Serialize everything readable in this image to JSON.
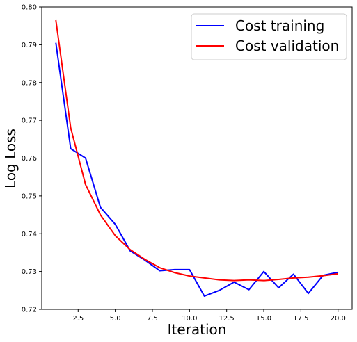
{
  "chart_data": {
    "type": "line",
    "title": "",
    "xlabel": "Iteration",
    "ylabel": "Log Loss",
    "xlim": [
      0.05,
      20.95
    ],
    "ylim": [
      0.72,
      0.8
    ],
    "x_ticks": [
      2.5,
      5.0,
      7.5,
      10.0,
      12.5,
      15.0,
      17.5,
      20.0
    ],
    "x_tick_labels": [
      "2.5",
      "5.0",
      "7.5",
      "10.0",
      "12.5",
      "15.0",
      "17.5",
      "20.0"
    ],
    "y_ticks": [
      0.72,
      0.73,
      0.74,
      0.75,
      0.76,
      0.77,
      0.78,
      0.79,
      0.8
    ],
    "y_tick_labels": [
      "0.72",
      "0.73",
      "0.74",
      "0.75",
      "0.76",
      "0.77",
      "0.78",
      "0.79",
      "0.80"
    ],
    "grid": false,
    "legend_position": "top-right",
    "x": [
      1,
      2,
      3,
      4,
      5,
      6,
      7,
      8,
      9,
      10,
      11,
      12,
      13,
      14,
      15,
      16,
      17,
      18,
      19,
      20
    ],
    "series": [
      {
        "name": "Cost training",
        "color": "#0000ff",
        "values": [
          0.7905,
          0.7625,
          0.76,
          0.747,
          0.7425,
          0.7355,
          0.733,
          0.7302,
          0.7305,
          0.7305,
          0.7235,
          0.725,
          0.7272,
          0.7252,
          0.73,
          0.7257,
          0.7293,
          0.7242,
          0.729,
          0.7298
        ]
      },
      {
        "name": "Cost validation",
        "color": "#ff0000",
        "values": [
          0.7965,
          0.768,
          0.753,
          0.745,
          0.7395,
          0.7358,
          0.7332,
          0.731,
          0.7297,
          0.7288,
          0.7283,
          0.7278,
          0.7276,
          0.7278,
          0.7276,
          0.7279,
          0.7283,
          0.7285,
          0.7289,
          0.7294
        ]
      }
    ]
  }
}
